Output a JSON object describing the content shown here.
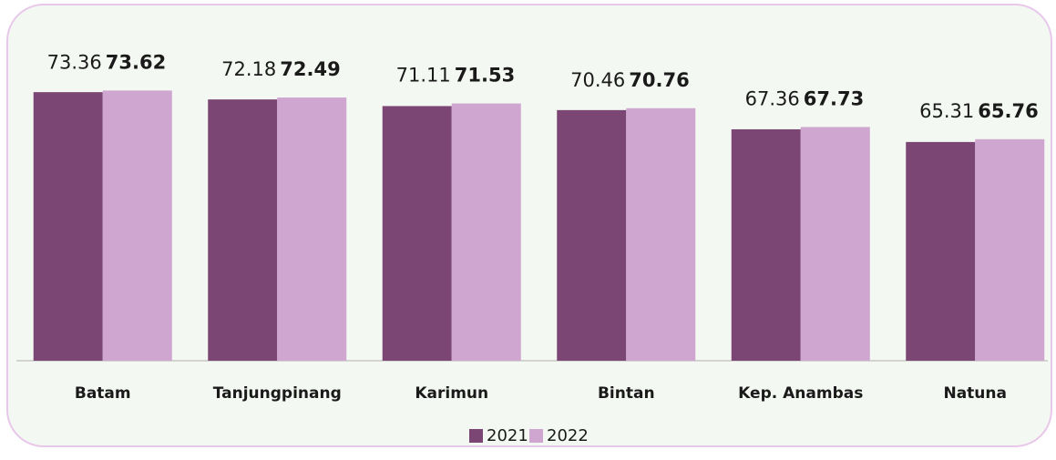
{
  "chart_data": {
    "type": "bar",
    "categories": [
      "Batam",
      "Tanjungpinang",
      "Karimun",
      "Bintan",
      "Kep. Anambas",
      "Natuna"
    ],
    "series": [
      {
        "name": "2021",
        "color": "#7b4574",
        "values": [
          73.36,
          72.18,
          71.11,
          70.46,
          67.36,
          65.31
        ]
      },
      {
        "name": "2022",
        "color": "#cfa6cf",
        "values": [
          73.62,
          72.49,
          71.53,
          70.76,
          67.73,
          65.76
        ]
      }
    ],
    "ylim": [
      30,
      80
    ],
    "legend": "bottom"
  }
}
